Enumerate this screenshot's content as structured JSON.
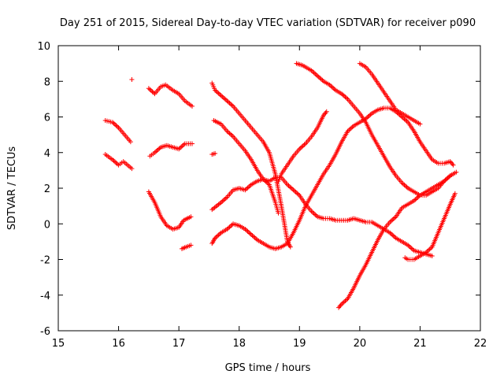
{
  "chart_data": {
    "type": "scatter",
    "title": "Day 251 of 2015, Sidereal Day-to-day VTEC variation (SDTVAR) for receiver p090",
    "xlabel": "GPS time / hours",
    "ylabel": "SDTVAR / TECUs",
    "xlim": [
      15,
      22
    ],
    "ylim": [
      -6,
      10
    ],
    "xticks": [
      15,
      16,
      17,
      18,
      19,
      20,
      21,
      22
    ],
    "yticks": [
      -6,
      -4,
      -2,
      0,
      2,
      4,
      6,
      8,
      10
    ],
    "grid": false,
    "marker": "+",
    "color": "#ff0000",
    "series": [
      {
        "name": "trace-01",
        "points": [
          [
            15.78,
            5.8
          ],
          [
            15.9,
            5.7
          ],
          [
            16.0,
            5.4
          ],
          [
            16.1,
            5.0
          ],
          [
            16.2,
            4.6
          ]
        ]
      },
      {
        "name": "trace-02",
        "points": [
          [
            15.78,
            3.9
          ],
          [
            15.9,
            3.6
          ],
          [
            16.0,
            3.3
          ],
          [
            16.08,
            3.5
          ],
          [
            16.15,
            3.3
          ],
          [
            16.22,
            3.1
          ]
        ]
      },
      {
        "name": "trace-03",
        "points": [
          [
            16.22,
            8.1
          ]
        ]
      },
      {
        "name": "trace-04",
        "points": [
          [
            16.5,
            7.6
          ],
          [
            16.6,
            7.3
          ],
          [
            16.7,
            7.7
          ],
          [
            16.78,
            7.8
          ],
          [
            16.9,
            7.5
          ],
          [
            17.0,
            7.3
          ],
          [
            17.1,
            6.9
          ],
          [
            17.22,
            6.6
          ]
        ]
      },
      {
        "name": "trace-05",
        "points": [
          [
            16.52,
            3.8
          ],
          [
            16.6,
            4.0
          ],
          [
            16.7,
            4.3
          ],
          [
            16.8,
            4.4
          ],
          [
            16.9,
            4.3
          ],
          [
            17.0,
            4.2
          ],
          [
            17.1,
            4.5
          ],
          [
            17.22,
            4.5
          ]
        ]
      },
      {
        "name": "trace-06",
        "points": [
          [
            16.5,
            1.8
          ],
          [
            16.6,
            1.2
          ],
          [
            16.7,
            0.4
          ],
          [
            16.8,
            -0.1
          ],
          [
            16.9,
            -0.3
          ],
          [
            17.0,
            -0.2
          ],
          [
            17.08,
            0.2
          ],
          [
            17.2,
            0.4
          ]
        ]
      },
      {
        "name": "trace-07",
        "points": [
          [
            17.05,
            -1.4
          ],
          [
            17.12,
            -1.3
          ],
          [
            17.2,
            -1.2
          ]
        ]
      },
      {
        "name": "trace-08",
        "points": [
          [
            17.55,
            7.9
          ],
          [
            17.6,
            7.5
          ],
          [
            17.7,
            7.2
          ],
          [
            17.8,
            6.9
          ],
          [
            17.9,
            6.6
          ],
          [
            18.0,
            6.2
          ],
          [
            18.1,
            5.8
          ],
          [
            18.2,
            5.4
          ],
          [
            18.3,
            5.0
          ],
          [
            18.4,
            4.6
          ],
          [
            18.5,
            4.0
          ],
          [
            18.6,
            2.8
          ],
          [
            18.7,
            1.0
          ],
          [
            18.8,
            -1.0
          ],
          [
            18.85,
            -1.3
          ]
        ]
      },
      {
        "name": "trace-09",
        "points": [
          [
            17.58,
            5.8
          ],
          [
            17.7,
            5.6
          ],
          [
            17.8,
            5.2
          ],
          [
            17.9,
            4.9
          ],
          [
            18.0,
            4.5
          ],
          [
            18.1,
            4.1
          ],
          [
            18.2,
            3.6
          ],
          [
            18.3,
            3.0
          ],
          [
            18.4,
            2.5
          ],
          [
            18.5,
            2.2
          ],
          [
            18.6,
            1.2
          ],
          [
            18.65,
            0.6
          ]
        ]
      },
      {
        "name": "trace-10",
        "points": [
          [
            17.55,
            3.9
          ],
          [
            17.6,
            3.95
          ]
        ]
      },
      {
        "name": "trace-11",
        "points": [
          [
            17.55,
            0.8
          ],
          [
            17.7,
            1.2
          ],
          [
            17.8,
            1.5
          ],
          [
            17.9,
            1.9
          ],
          [
            18.0,
            2.0
          ],
          [
            18.1,
            1.9
          ],
          [
            18.2,
            2.2
          ],
          [
            18.3,
            2.4
          ],
          [
            18.4,
            2.5
          ],
          [
            18.5,
            2.4
          ],
          [
            18.6,
            2.6
          ],
          [
            18.7,
            2.6
          ],
          [
            18.8,
            2.2
          ],
          [
            18.9,
            1.9
          ],
          [
            19.0,
            1.6
          ],
          [
            19.1,
            1.1
          ],
          [
            19.2,
            0.7
          ],
          [
            19.3,
            0.4
          ],
          [
            19.4,
            0.3
          ],
          [
            19.5,
            0.3
          ],
          [
            19.6,
            0.2
          ],
          [
            19.7,
            0.2
          ],
          [
            19.8,
            0.2
          ],
          [
            19.9,
            0.3
          ],
          [
            20.0,
            0.2
          ],
          [
            20.1,
            0.1
          ],
          [
            20.2,
            0.1
          ],
          [
            20.3,
            -0.1
          ],
          [
            20.4,
            -0.3
          ],
          [
            20.5,
            -0.5
          ],
          [
            20.6,
            -0.8
          ],
          [
            20.7,
            -1.0
          ],
          [
            20.8,
            -1.2
          ],
          [
            20.9,
            -1.5
          ],
          [
            21.0,
            -1.6
          ],
          [
            21.1,
            -1.7
          ],
          [
            21.2,
            -1.8
          ]
        ]
      },
      {
        "name": "trace-12",
        "points": [
          [
            17.55,
            -1.1
          ],
          [
            17.6,
            -0.8
          ],
          [
            17.7,
            -0.5
          ],
          [
            17.8,
            -0.3
          ],
          [
            17.9,
            0.0
          ],
          [
            18.0,
            -0.1
          ],
          [
            18.1,
            -0.3
          ],
          [
            18.2,
            -0.6
          ],
          [
            18.3,
            -0.9
          ],
          [
            18.4,
            -1.1
          ],
          [
            18.5,
            -1.3
          ],
          [
            18.6,
            -1.4
          ],
          [
            18.7,
            -1.3
          ],
          [
            18.8,
            -1.1
          ],
          [
            18.9,
            -0.5
          ],
          [
            19.0,
            0.2
          ],
          [
            19.1,
            1.0
          ],
          [
            19.2,
            1.6
          ],
          [
            19.3,
            2.2
          ],
          [
            19.4,
            2.8
          ],
          [
            19.5,
            3.3
          ],
          [
            19.6,
            3.9
          ],
          [
            19.7,
            4.6
          ],
          [
            19.8,
            5.2
          ],
          [
            19.9,
            5.5
          ],
          [
            20.0,
            5.7
          ],
          [
            20.1,
            5.9
          ],
          [
            20.2,
            6.2
          ],
          [
            20.3,
            6.4
          ],
          [
            20.4,
            6.5
          ],
          [
            20.5,
            6.5
          ],
          [
            20.6,
            6.3
          ],
          [
            20.7,
            6.0
          ],
          [
            20.8,
            5.7
          ],
          [
            20.9,
            5.2
          ],
          [
            21.0,
            4.6
          ],
          [
            21.1,
            4.1
          ],
          [
            21.2,
            3.6
          ],
          [
            21.3,
            3.4
          ],
          [
            21.4,
            3.4
          ],
          [
            21.5,
            3.5
          ],
          [
            21.55,
            3.3
          ]
        ]
      },
      {
        "name": "trace-13",
        "points": [
          [
            18.65,
            2.4
          ],
          [
            18.7,
            2.8
          ],
          [
            18.8,
            3.3
          ],
          [
            18.9,
            3.8
          ],
          [
            19.0,
            4.2
          ],
          [
            19.1,
            4.5
          ],
          [
            19.2,
            4.9
          ],
          [
            19.3,
            5.4
          ],
          [
            19.4,
            6.1
          ],
          [
            19.45,
            6.3
          ]
        ]
      },
      {
        "name": "trace-14",
        "points": [
          [
            18.95,
            9.0
          ],
          [
            19.05,
            8.9
          ],
          [
            19.1,
            8.8
          ],
          [
            19.2,
            8.6
          ],
          [
            19.3,
            8.3
          ],
          [
            19.4,
            8.0
          ],
          [
            19.5,
            7.8
          ],
          [
            19.6,
            7.5
          ],
          [
            19.7,
            7.3
          ],
          [
            19.8,
            7.0
          ],
          [
            19.9,
            6.6
          ],
          [
            20.0,
            6.2
          ],
          [
            20.1,
            5.7
          ],
          [
            20.2,
            5.0
          ],
          [
            20.3,
            4.4
          ],
          [
            20.4,
            3.8
          ],
          [
            20.5,
            3.2
          ],
          [
            20.6,
            2.7
          ],
          [
            20.7,
            2.3
          ],
          [
            20.8,
            2.0
          ],
          [
            20.9,
            1.8
          ],
          [
            21.0,
            1.6
          ],
          [
            21.1,
            1.6
          ],
          [
            21.2,
            1.8
          ],
          [
            21.3,
            2.0
          ],
          [
            21.4,
            2.4
          ],
          [
            21.5,
            2.7
          ],
          [
            21.6,
            2.9
          ]
        ]
      },
      {
        "name": "trace-15",
        "points": [
          [
            19.65,
            -4.7
          ],
          [
            19.7,
            -4.5
          ],
          [
            19.8,
            -4.2
          ],
          [
            19.9,
            -3.6
          ],
          [
            20.0,
            -2.9
          ],
          [
            20.1,
            -2.3
          ],
          [
            20.2,
            -1.6
          ],
          [
            20.3,
            -0.9
          ],
          [
            20.4,
            -0.3
          ],
          [
            20.5,
            0.1
          ],
          [
            20.6,
            0.4
          ],
          [
            20.7,
            0.9
          ],
          [
            20.8,
            1.1
          ],
          [
            20.9,
            1.3
          ],
          [
            21.0,
            1.6
          ],
          [
            21.1,
            1.8
          ],
          [
            21.2,
            2.0
          ],
          [
            21.3,
            2.2
          ],
          [
            21.4,
            2.4
          ],
          [
            21.5,
            2.7
          ]
        ]
      },
      {
        "name": "trace-16",
        "points": [
          [
            20.0,
            9.0
          ],
          [
            20.1,
            8.8
          ],
          [
            20.2,
            8.4
          ],
          [
            20.3,
            7.9
          ],
          [
            20.4,
            7.4
          ],
          [
            20.5,
            6.9
          ],
          [
            20.6,
            6.4
          ],
          [
            20.7,
            6.2
          ],
          [
            20.8,
            6.0
          ],
          [
            20.9,
            5.8
          ],
          [
            21.0,
            5.6
          ]
        ]
      },
      {
        "name": "trace-17",
        "points": [
          [
            20.75,
            -1.9
          ],
          [
            20.8,
            -2.0
          ],
          [
            20.9,
            -2.0
          ],
          [
            21.0,
            -1.8
          ],
          [
            21.1,
            -1.6
          ],
          [
            21.2,
            -1.3
          ],
          [
            21.3,
            -0.5
          ],
          [
            21.4,
            0.3
          ],
          [
            21.5,
            1.1
          ],
          [
            21.58,
            1.7
          ]
        ]
      }
    ]
  }
}
